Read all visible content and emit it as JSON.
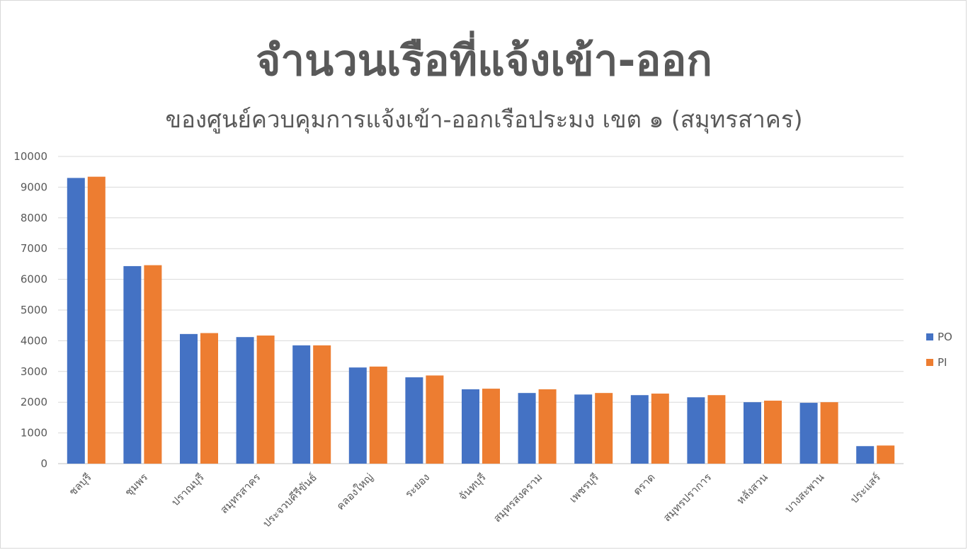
{
  "chart_data": {
    "type": "bar",
    "title": "จำนวนเรือที่แจ้งเข้า-ออก",
    "subtitle": "ของศูนย์ควบคุมการแจ้งเข้า-ออกเรือประมง เขต ๑ (สมุทรสาคร)",
    "categories": [
      "ชลบุรี",
      "ชุมพร",
      "ปราณบุรี",
      "สมุทรสาคร",
      "ประจวบคีรีขันธ์",
      "คลองใหญ่",
      "ระยอง",
      "จันทบุรี",
      "สมุทรสงคราม",
      "เพชรบุรี",
      "ตราด",
      "สมุทรปราการ",
      "หลังสวน",
      "บางสะพาน",
      "ประแสร์"
    ],
    "series": [
      {
        "name": "PO",
        "color": "#4472C4",
        "values": [
          9300,
          6430,
          4220,
          4120,
          3850,
          3130,
          2810,
          2420,
          2300,
          2250,
          2230,
          2160,
          2000,
          1980,
          570
        ]
      },
      {
        "name": "PI",
        "color": "#ED7D31",
        "values": [
          9340,
          6460,
          4250,
          4170,
          3850,
          3160,
          2870,
          2440,
          2420,
          2300,
          2280,
          2230,
          2050,
          2000,
          590
        ]
      }
    ],
    "y_ticks": [
      "0",
      "1000",
      "2000",
      "3000",
      "4000",
      "5000",
      "6000",
      "7000",
      "8000",
      "9000",
      "10000"
    ],
    "ylim": [
      0,
      10000
    ],
    "grid": true,
    "legend_position": "right"
  }
}
